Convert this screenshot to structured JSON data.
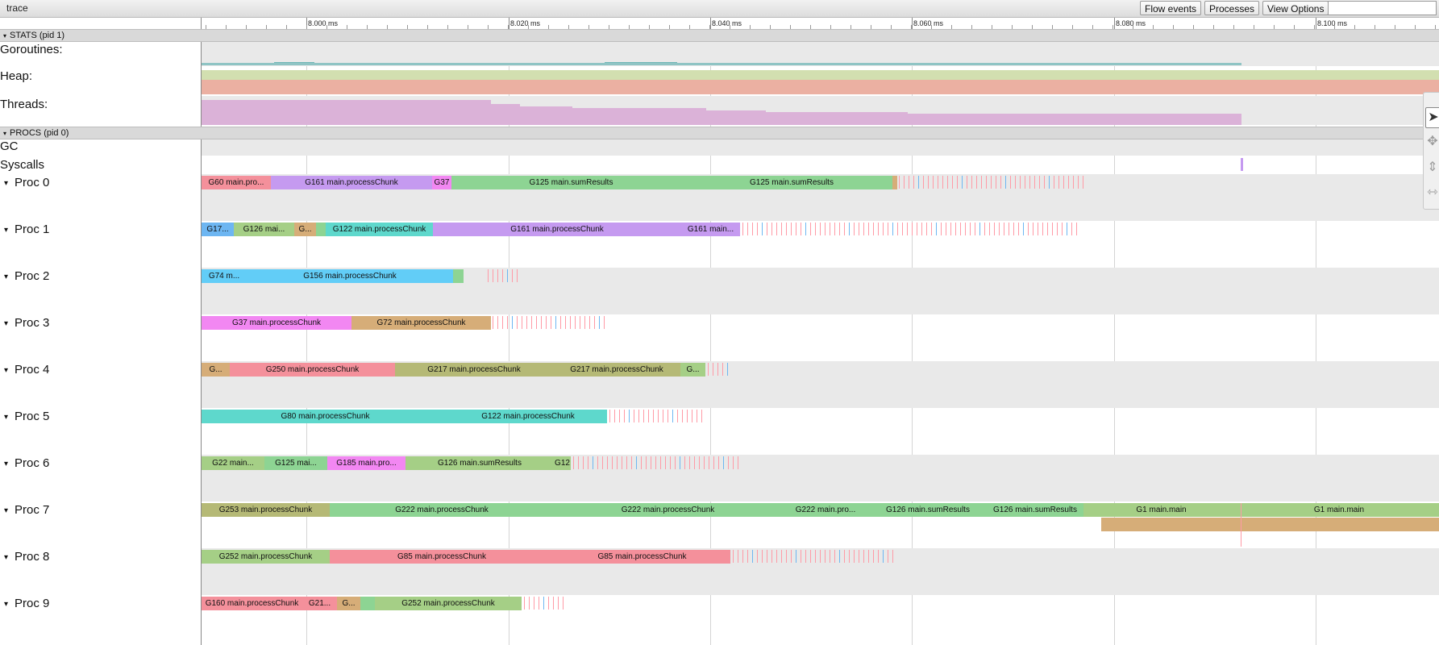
{
  "window": {
    "title": "trace"
  },
  "toolbar": {
    "flow_events": "Flow events",
    "processes": "Processes",
    "view_options": "View Options"
  },
  "ruler": {
    "labels": [
      "8.000 ms",
      "8.020 ms",
      "8.040 ms",
      "8.060 ms",
      "8.080 ms",
      "8.100 ms"
    ]
  },
  "sections": {
    "stats": "STATS (pid 1)",
    "procs": "PROCS (pid 0)"
  },
  "stats_rows": {
    "goroutines": "Goroutines:",
    "heap": "Heap:",
    "threads": "Threads:"
  },
  "proc_rows": {
    "gc": "GC",
    "syscalls": "Syscalls"
  },
  "icons": {
    "collapse": "▾",
    "select": "select-pointer-icon",
    "pan": "pan-icon",
    "zoom": "zoom-icon",
    "timing": "timing-icon"
  },
  "colors": {
    "pink": "#f4909b",
    "purple": "#c59af0",
    "green": "#8dd493",
    "olive": "#b5b976",
    "cyan": "#62cdf7",
    "teal": "#5ed8cc",
    "magenta": "#f287f2",
    "orange": "#d6ad78",
    "lightgreen": "#a5cf86",
    "blue": "#6db6f2",
    "ruby": "#ff9aa6"
  },
  "procs": [
    {
      "label": "Proc 0",
      "slices": [
        {
          "start": 250,
          "end": 336,
          "text": "G60 main.pro...",
          "color": "pink"
        },
        {
          "start": 336,
          "end": 536,
          "text": "G161 main.processChunk",
          "color": "purple"
        },
        {
          "start": 536,
          "end": 560,
          "text": "G37",
          "color": "magenta"
        },
        {
          "start": 560,
          "end": 857,
          "text": "G125 main.sumResults",
          "color": "green"
        },
        {
          "start": 857,
          "end": 1107,
          "text": "G125 main.sumResults",
          "color": "green"
        },
        {
          "start": 1107,
          "end": 1113,
          "text": "",
          "color": "orange"
        }
      ],
      "blips": [
        1115,
        1346
      ],
      "blipcolor": "pink"
    },
    {
      "label": "Proc 1",
      "slices": [
        {
          "start": 250,
          "end": 290,
          "text": "G17...",
          "color": "blue"
        },
        {
          "start": 290,
          "end": 365,
          "text": "G126 mai...",
          "color": "lightgreen"
        },
        {
          "start": 365,
          "end": 392,
          "text": "G...",
          "color": "orange"
        },
        {
          "start": 392,
          "end": 404,
          "text": "",
          "color": "green"
        },
        {
          "start": 404,
          "end": 537,
          "text": "G122 main.processChunk",
          "color": "teal"
        },
        {
          "start": 537,
          "end": 845,
          "text": "G161 main.processChunk",
          "color": "purple"
        },
        {
          "start": 845,
          "end": 918,
          "text": "G161 main...",
          "color": "purple"
        }
      ],
      "blips": [
        921,
        1340
      ],
      "blipcolor": "pink"
    },
    {
      "label": "Proc 2",
      "slices": [
        {
          "start": 250,
          "end": 306,
          "text": "G74 m...",
          "color": "cyan"
        },
        {
          "start": 306,
          "end": 562,
          "text": "G156 main.processChunk",
          "color": "cyan"
        },
        {
          "start": 562,
          "end": 575,
          "text": "",
          "color": "green"
        }
      ],
      "blips": [
        605,
        642
      ],
      "blipcolor": "pink"
    },
    {
      "label": "Proc 3",
      "slices": [
        {
          "start": 250,
          "end": 436,
          "text": "G37 main.processChunk",
          "color": "magenta"
        },
        {
          "start": 436,
          "end": 609,
          "text": "G72 main.processChunk",
          "color": "orange"
        }
      ],
      "blips": [
        611,
        753
      ],
      "blipcolor": "pink"
    },
    {
      "label": "Proc 4",
      "slices": [
        {
          "start": 250,
          "end": 285,
          "text": "G...",
          "color": "orange"
        },
        {
          "start": 285,
          "end": 490,
          "text": "G250 main.processChunk",
          "color": "pink"
        },
        {
          "start": 490,
          "end": 686,
          "text": "G217 main.processChunk",
          "color": "olive"
        },
        {
          "start": 686,
          "end": 844,
          "text": "G217 main.processChunk",
          "color": "olive"
        },
        {
          "start": 844,
          "end": 875,
          "text": "G...",
          "color": "lightgreen"
        }
      ],
      "blips": [
        878,
        905
      ],
      "blipcolor": "pink"
    },
    {
      "label": "Proc 5",
      "slices": [
        {
          "start": 250,
          "end": 557,
          "text": "G80 main.processChunk",
          "color": "teal"
        },
        {
          "start": 557,
          "end": 753,
          "text": "G122 main.processChunk",
          "color": "teal"
        }
      ],
      "blips": [
        756,
        875
      ],
      "blipcolor": "pink"
    },
    {
      "label": "Proc 6",
      "slices": [
        {
          "start": 250,
          "end": 328,
          "text": "G22 main...",
          "color": "lightgreen"
        },
        {
          "start": 328,
          "end": 406,
          "text": "G125 mai...",
          "color": "green"
        },
        {
          "start": 406,
          "end": 503,
          "text": "G185 main.pro...",
          "color": "magenta"
        },
        {
          "start": 503,
          "end": 687,
          "text": "G126 main.sumResults",
          "color": "lightgreen"
        },
        {
          "start": 687,
          "end": 708,
          "text": "G12",
          "color": "lightgreen"
        }
      ],
      "blips": [
        711,
        917
      ],
      "blipcolor": "pink"
    },
    {
      "label": "Proc 7",
      "slices": [
        {
          "start": 250,
          "end": 409,
          "text": "G253 main.processChunk",
          "color": "olive"
        },
        {
          "start": 409,
          "end": 687,
          "text": "G222 main.processChunk",
          "color": "green"
        },
        {
          "start": 687,
          "end": 970,
          "text": "G222 main.processChunk",
          "color": "green"
        },
        {
          "start": 970,
          "end": 1078,
          "text": "G222 main.pro...",
          "color": "green"
        },
        {
          "start": 1078,
          "end": 1224,
          "text": "G126 main.sumResults",
          "color": "green"
        },
        {
          "start": 1224,
          "end": 1344,
          "text": "G126 main.sumResults",
          "color": "green"
        },
        {
          "start": 1344,
          "end": 1537,
          "text": "G1 main.main",
          "color": "lightgreen"
        },
        {
          "start": 1537,
          "end": 1785,
          "text": "G1 main.main",
          "color": "lightgreen"
        }
      ],
      "blips": [],
      "blipcolor": "pink"
    },
    {
      "label": "Proc 8",
      "slices": [
        {
          "start": 250,
          "end": 409,
          "text": "G252 main.processChunk",
          "color": "lightgreen"
        },
        {
          "start": 409,
          "end": 687,
          "text": "G85 main.processChunk",
          "color": "pink"
        },
        {
          "start": 687,
          "end": 906,
          "text": "G85 main.processChunk",
          "color": "pink"
        }
      ],
      "blips": [
        909,
        1110
      ],
      "blipcolor": "pink"
    },
    {
      "label": "Proc 9",
      "slices": [
        {
          "start": 250,
          "end": 375,
          "text": "G160 main.processChunk",
          "color": "pink"
        },
        {
          "start": 375,
          "end": 418,
          "text": "G21...",
          "color": "pink"
        },
        {
          "start": 418,
          "end": 447,
          "text": "G...",
          "color": "orange"
        },
        {
          "start": 447,
          "end": 465,
          "text": "",
          "color": "green"
        },
        {
          "start": 465,
          "end": 647,
          "text": "G252 main.processChunk",
          "color": "lightgreen"
        }
      ],
      "blips": [
        650,
        703
      ],
      "blipcolor": "pink"
    }
  ]
}
